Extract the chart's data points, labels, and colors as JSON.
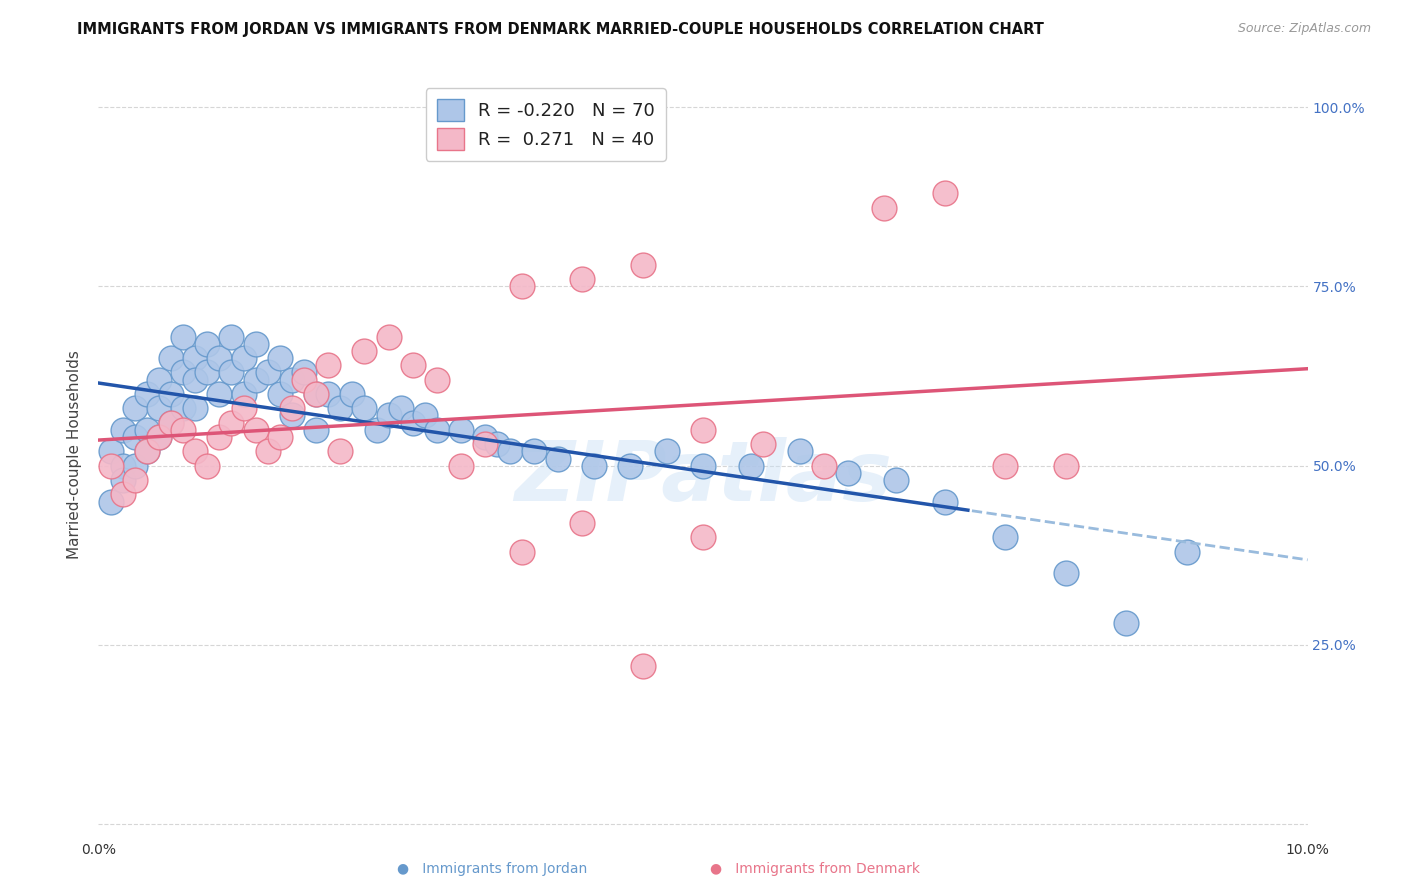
{
  "title": "IMMIGRANTS FROM JORDAN VS IMMIGRANTS FROM DENMARK MARRIED-COUPLE HOUSEHOLDS CORRELATION CHART",
  "source": "Source: ZipAtlas.com",
  "ylabel": "Married-couple Households",
  "xlim": [
    0.0,
    0.1
  ],
  "ylim": [
    -0.02,
    1.05
  ],
  "right_ytick_color": "#4472c4",
  "jordan_color": "#aec6e8",
  "denmark_color": "#f4b8c8",
  "jordan_edge_color": "#6699cc",
  "denmark_edge_color": "#e8758a",
  "jordan_line_color": "#2255aa",
  "denmark_line_color": "#dd5577",
  "jordan_dash_color": "#99bbdd",
  "background_color": "#ffffff",
  "grid_color": "#cccccc",
  "watermark": "ZIPatlas",
  "jordan_R": -0.22,
  "jordan_N": 70,
  "denmark_R": 0.271,
  "denmark_N": 40,
  "jordan_x": [
    0.001,
    0.001,
    0.002,
    0.002,
    0.002,
    0.003,
    0.003,
    0.003,
    0.004,
    0.004,
    0.004,
    0.005,
    0.005,
    0.005,
    0.006,
    0.006,
    0.006,
    0.007,
    0.007,
    0.007,
    0.008,
    0.008,
    0.008,
    0.009,
    0.009,
    0.01,
    0.01,
    0.011,
    0.011,
    0.012,
    0.012,
    0.013,
    0.013,
    0.014,
    0.015,
    0.015,
    0.016,
    0.016,
    0.017,
    0.018,
    0.018,
    0.019,
    0.02,
    0.021,
    0.022,
    0.023,
    0.024,
    0.025,
    0.026,
    0.027,
    0.028,
    0.03,
    0.032,
    0.033,
    0.034,
    0.036,
    0.038,
    0.041,
    0.044,
    0.047,
    0.05,
    0.054,
    0.058,
    0.062,
    0.066,
    0.07,
    0.075,
    0.08,
    0.085,
    0.09
  ],
  "jordan_y": [
    0.52,
    0.45,
    0.55,
    0.5,
    0.48,
    0.58,
    0.54,
    0.5,
    0.6,
    0.55,
    0.52,
    0.62,
    0.58,
    0.54,
    0.65,
    0.6,
    0.56,
    0.68,
    0.63,
    0.58,
    0.65,
    0.62,
    0.58,
    0.67,
    0.63,
    0.65,
    0.6,
    0.68,
    0.63,
    0.65,
    0.6,
    0.67,
    0.62,
    0.63,
    0.65,
    0.6,
    0.62,
    0.57,
    0.63,
    0.6,
    0.55,
    0.6,
    0.58,
    0.6,
    0.58,
    0.55,
    0.57,
    0.58,
    0.56,
    0.57,
    0.55,
    0.55,
    0.54,
    0.53,
    0.52,
    0.52,
    0.51,
    0.5,
    0.5,
    0.52,
    0.5,
    0.5,
    0.52,
    0.49,
    0.48,
    0.45,
    0.4,
    0.35,
    0.28,
    0.38
  ],
  "denmark_x": [
    0.001,
    0.002,
    0.003,
    0.004,
    0.005,
    0.006,
    0.007,
    0.008,
    0.009,
    0.01,
    0.011,
    0.012,
    0.013,
    0.014,
    0.015,
    0.016,
    0.017,
    0.018,
    0.019,
    0.02,
    0.022,
    0.024,
    0.026,
    0.028,
    0.03,
    0.032,
    0.035,
    0.04,
    0.045,
    0.05,
    0.055,
    0.06,
    0.065,
    0.07,
    0.075,
    0.08,
    0.035,
    0.04,
    0.045,
    0.05
  ],
  "denmark_y": [
    0.5,
    0.46,
    0.48,
    0.52,
    0.54,
    0.56,
    0.55,
    0.52,
    0.5,
    0.54,
    0.56,
    0.58,
    0.55,
    0.52,
    0.54,
    0.58,
    0.62,
    0.6,
    0.64,
    0.52,
    0.66,
    0.68,
    0.64,
    0.62,
    0.5,
    0.53,
    0.75,
    0.76,
    0.78,
    0.55,
    0.53,
    0.5,
    0.86,
    0.88,
    0.5,
    0.5,
    0.38,
    0.42,
    0.22,
    0.4
  ]
}
